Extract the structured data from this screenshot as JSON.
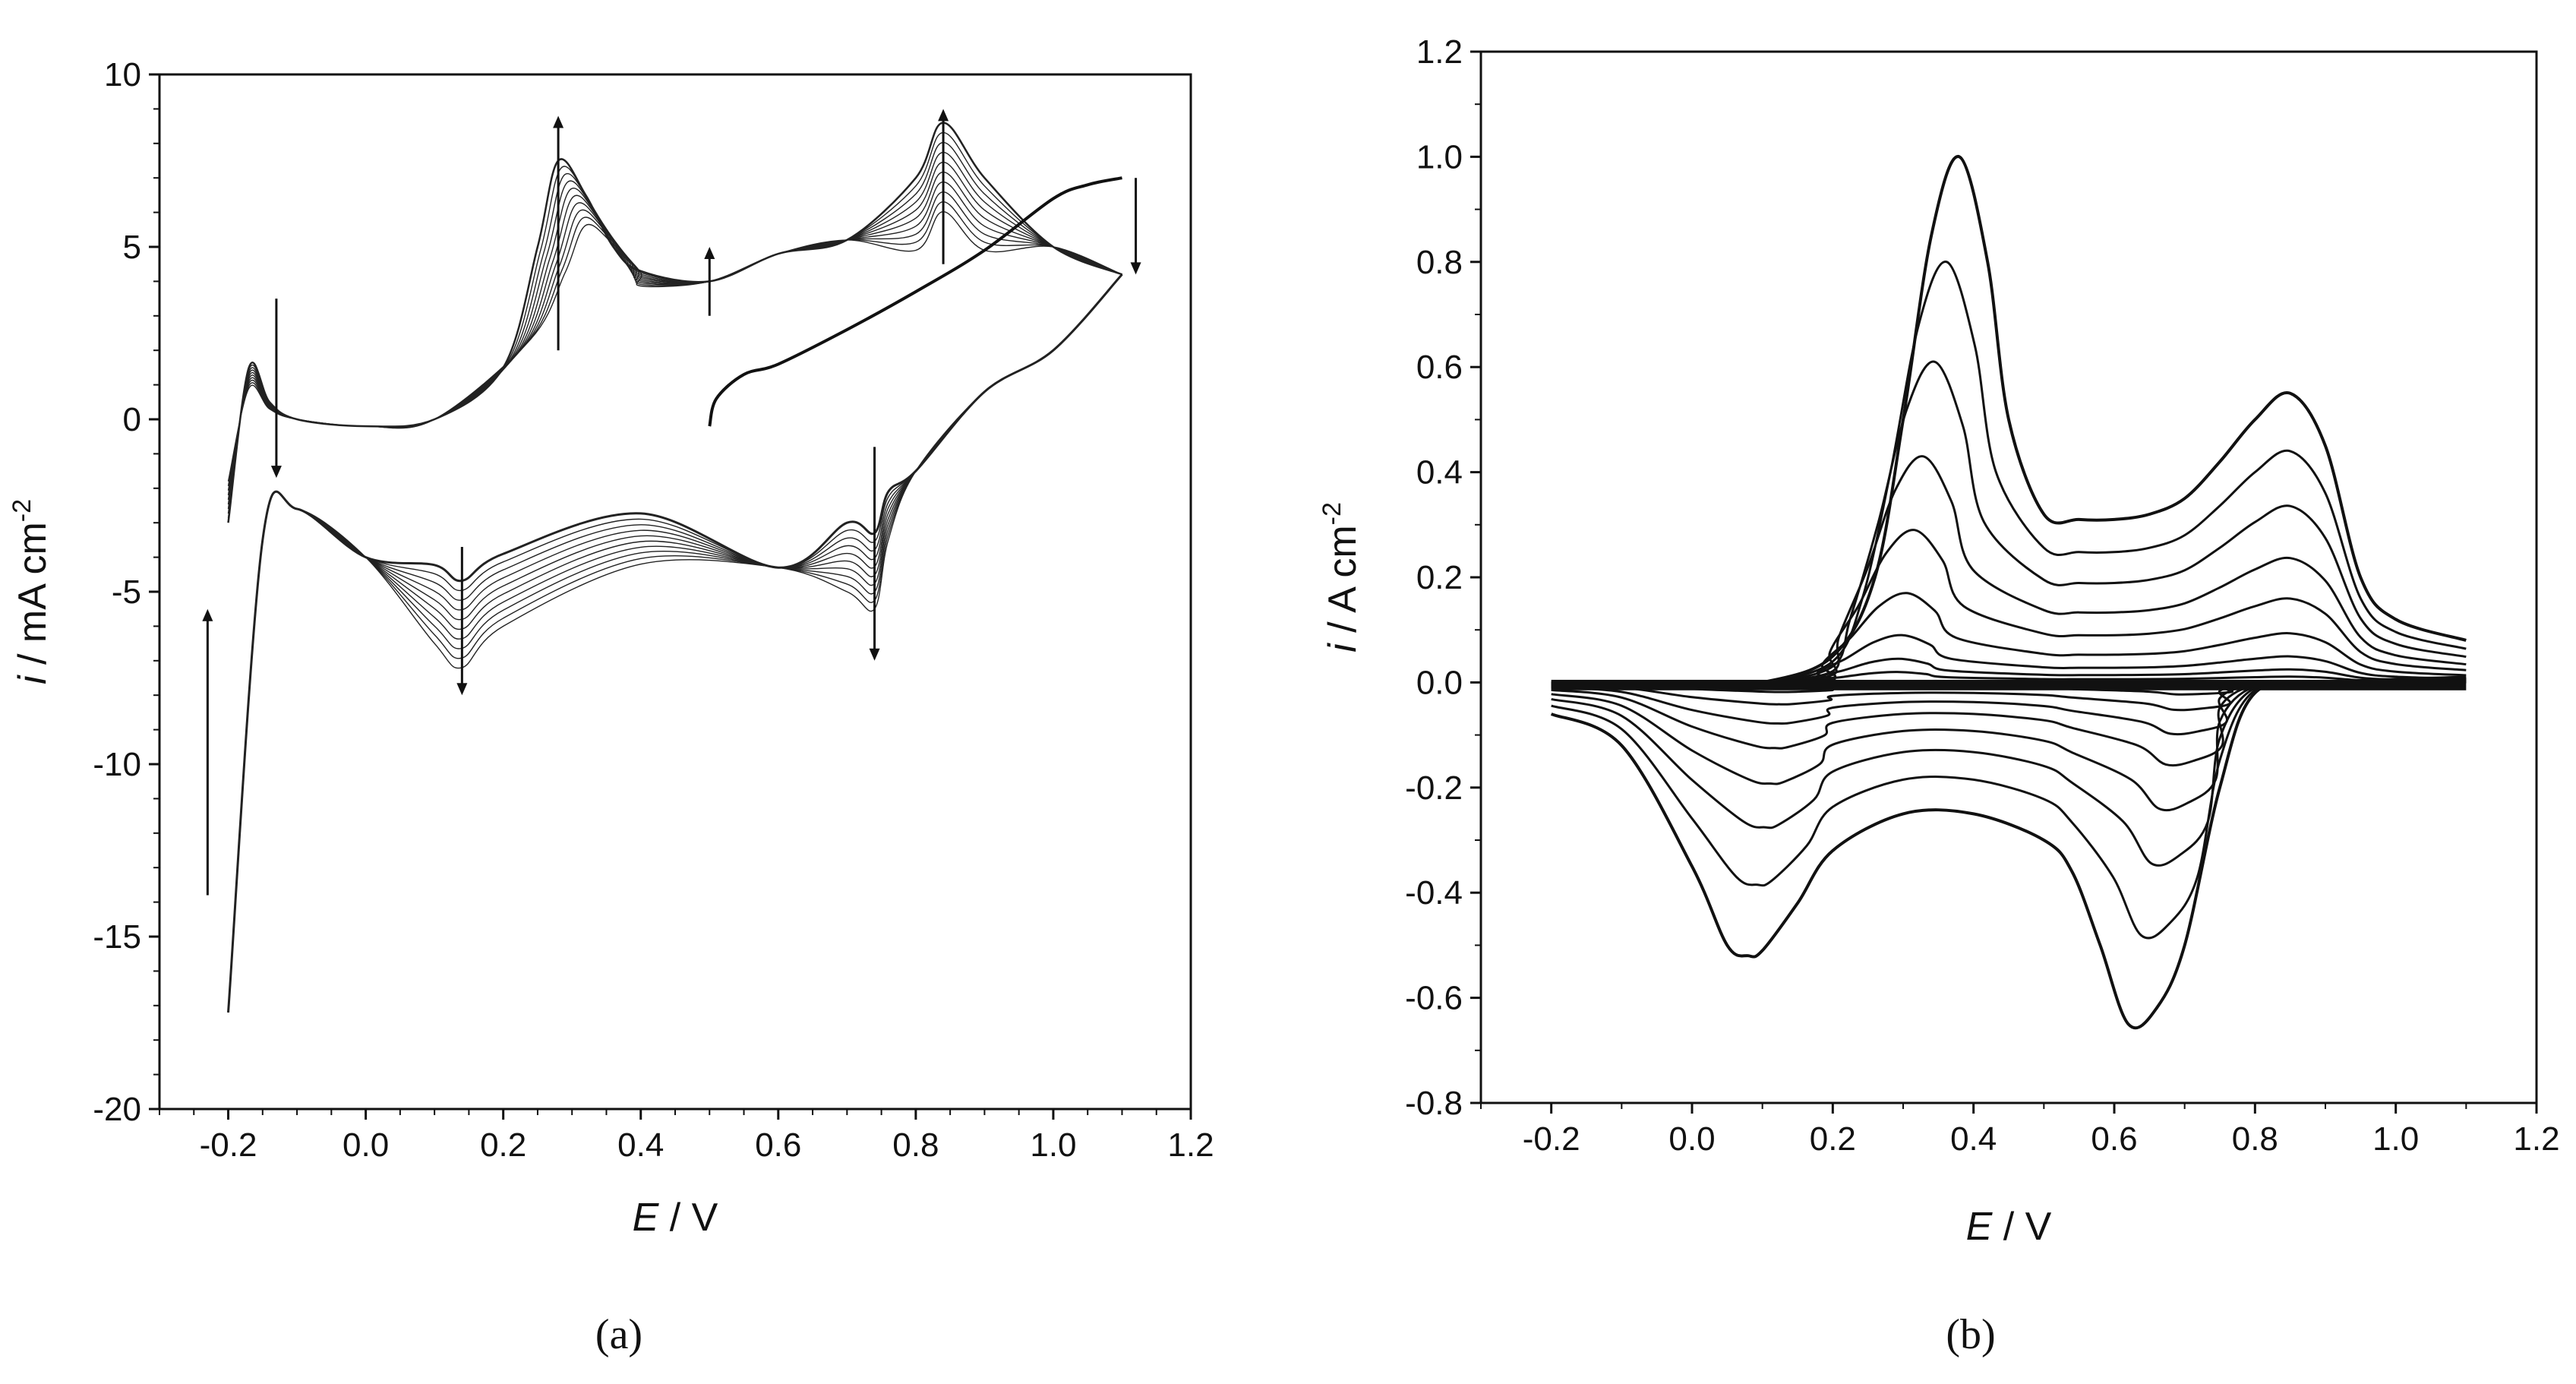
{
  "chart_data": [
    {
      "type": "line",
      "caption": "(a)",
      "xlabel": {
        "symbol": "E",
        "unit": " / V"
      },
      "ylabel": {
        "symbol": "i",
        "unit": " / mA cm",
        "sup": "-2"
      },
      "xlim": [
        -0.3,
        1.2
      ],
      "ylim": [
        -20,
        10
      ],
      "xticks": [
        -0.2,
        0.0,
        0.2,
        0.4,
        0.6,
        0.8,
        1.0,
        1.2
      ],
      "xtick_labels": [
        "-0.2",
        "0.0",
        "0.2",
        "0.4",
        "0.6",
        "0.8",
        "1.0",
        "1.2"
      ],
      "yticks": [
        -20,
        -15,
        -10,
        -5,
        0,
        5,
        10
      ],
      "ytick_labels": [
        "-20",
        "-15",
        "-10",
        "-5",
        "0",
        "5",
        "10"
      ],
      "num_cycles": 10,
      "series": [
        {
          "name": "anodic scan, first cycle",
          "x": [
            0.5,
            0.51,
            0.55,
            0.6,
            0.7,
            0.8,
            0.9,
            1.0,
            1.05,
            1.1
          ],
          "y": [
            -0.2,
            0.6,
            1.3,
            1.6,
            2.6,
            3.7,
            4.9,
            6.4,
            6.8,
            7.0
          ]
        },
        {
          "name": "anodic scan, last cycle",
          "x": [
            -0.2,
            -0.17,
            -0.14,
            -0.1,
            0.0,
            0.1,
            0.2,
            0.25,
            0.28,
            0.32,
            0.36,
            0.4,
            0.5,
            0.6,
            0.7,
            0.8,
            0.84,
            0.9,
            1.0,
            1.1
          ],
          "y": [
            -3.0,
            1.5,
            0.5,
            0.0,
            -0.2,
            0.0,
            1.5,
            5.0,
            7.5,
            6.5,
            5.0,
            4.3,
            4.0,
            4.8,
            5.2,
            7.0,
            8.6,
            7.0,
            5.0,
            4.2
          ]
        },
        {
          "name": "cathodic scan, last cycle",
          "x": [
            1.1,
            1.0,
            0.9,
            0.8,
            0.76,
            0.74,
            0.7,
            0.6,
            0.4,
            0.2,
            0.14,
            0.1,
            0.0,
            -0.1,
            -0.15,
            -0.2
          ],
          "y": [
            4.2,
            2.0,
            0.8,
            -1.5,
            -3.5,
            -5.5,
            -5.0,
            -4.3,
            -4.2,
            -6.0,
            -7.2,
            -6.5,
            -4.0,
            -2.6,
            -3.5,
            -17.2
          ]
        }
      ],
      "arrows": [
        {
          "x": -0.13,
          "from": 3.5,
          "to": -1.7
        },
        {
          "x": 0.28,
          "from": 2.0,
          "to": 8.8
        },
        {
          "x": 0.5,
          "from": 3.0,
          "to": 5.0
        },
        {
          "x": 0.84,
          "from": 4.5,
          "to": 9.0
        },
        {
          "x": 1.12,
          "from": 7.0,
          "to": 4.2
        },
        {
          "x": -0.23,
          "from": -13.8,
          "to": -5.5
        },
        {
          "x": 0.14,
          "from": -3.7,
          "to": -8.0
        },
        {
          "x": 0.74,
          "from": -0.8,
          "to": -7.0
        }
      ]
    },
    {
      "type": "line",
      "caption": "(b)",
      "xlabel": {
        "symbol": "E",
        "unit": " / V"
      },
      "ylabel": {
        "symbol": "i",
        "unit": " / A cm",
        "sup": "-2"
      },
      "xlim": [
        -0.3,
        1.2
      ],
      "ylim": [
        -0.8,
        1.2
      ],
      "xticks": [
        -0.2,
        0.0,
        0.2,
        0.4,
        0.6,
        0.8,
        1.0,
        1.2
      ],
      "xtick_labels": [
        "-0.2",
        "0.0",
        "0.2",
        "0.4",
        "0.6",
        "0.8",
        "1.0",
        "1.2"
      ],
      "yticks": [
        -0.8,
        -0.6,
        -0.4,
        -0.2,
        0.0,
        0.2,
        0.4,
        0.6,
        0.8,
        1.0,
        1.2
      ],
      "ytick_labels": [
        "-0.8",
        "-0.6",
        "-0.4",
        "-0.2",
        "0.0",
        "0.2",
        "0.4",
        "0.6",
        "0.8",
        "1.0",
        "1.2"
      ],
      "series": [
        {
          "name": "largest anodic peak",
          "x": [
            -0.2,
            0.0,
            0.1,
            0.2,
            0.26,
            0.3,
            0.34,
            0.38,
            0.42,
            0.45,
            0.5,
            0.55,
            0.6,
            0.65,
            0.7,
            0.75,
            0.8,
            0.85,
            0.9,
            0.95,
            1.0,
            1.1
          ],
          "y": [
            -0.01,
            -0.01,
            0.0,
            0.05,
            0.2,
            0.5,
            0.85,
            1.0,
            0.8,
            0.5,
            0.32,
            0.31,
            0.31,
            0.32,
            0.35,
            0.42,
            0.5,
            0.55,
            0.45,
            0.2,
            0.12,
            0.08
          ]
        },
        {
          "name": "largest cathodic peak",
          "x": [
            1.1,
            0.9,
            0.8,
            0.75,
            0.7,
            0.66,
            0.62,
            0.58,
            0.54,
            0.5,
            0.4,
            0.3,
            0.2,
            0.15,
            0.1,
            0.08,
            0.05,
            0.0,
            -0.1,
            -0.2
          ],
          "y": [
            0.01,
            0.0,
            -0.02,
            -0.2,
            -0.5,
            -0.62,
            -0.65,
            -0.5,
            -0.36,
            -0.3,
            -0.25,
            -0.25,
            -0.32,
            -0.42,
            -0.51,
            -0.52,
            -0.5,
            -0.35,
            -0.12,
            -0.06
          ]
        }
      ],
      "anodic_peak_scales": [
        1.0,
        0.8,
        0.61,
        0.43,
        0.29,
        0.17,
        0.09,
        0.045,
        0.02
      ],
      "cathodic_peak_scales": [
        1.0,
        0.74,
        0.53,
        0.37,
        0.24,
        0.15,
        0.08,
        0.035
      ]
    }
  ]
}
